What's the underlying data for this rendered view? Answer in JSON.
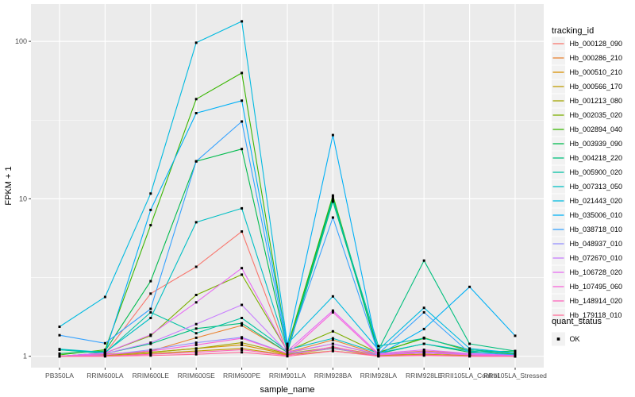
{
  "style_colors": {
    "figure_bg": "#FFFFFF",
    "panel_bg": "#EBEBEB",
    "grid": "#FFFFFF",
    "tick_label": "#4D4D4D",
    "tick_mark": "#333333",
    "axis_title": "#000000",
    "legend_key_bg": "#F2F2F2",
    "marker": "#000000"
  },
  "chart_data": {
    "type": "line",
    "title": "",
    "xlabel": "sample_name",
    "ylabel": "FPKM + 1",
    "y_scale": "log10",
    "y_ticks": [
      1,
      10,
      100
    ],
    "y_minor_ticks": [
      3.162,
      31.62
    ],
    "axis_ranges": {
      "y_top_value": 170,
      "y_bottom_value": 0.93
    },
    "grid": {
      "major": true,
      "minor": true
    },
    "legend_position": "right",
    "categories": [
      "PB350LA",
      "RRIM600LA",
      "RRIM600LE",
      "RRIM600SE",
      "RRIM600PE",
      "RRIM901LA",
      "RRIM928BA",
      "RRIM928LA",
      "RRIM928LE",
      "RRII105LA_Control",
      "RRII105LA_Stressed"
    ],
    "series": [
      {
        "name": "Hb_000128_090",
        "color": "#F8766D",
        "values": [
          1.0,
          1.04,
          2.5,
          3.7,
          6.2,
          1.05,
          1.2,
          1.02,
          1.06,
          1.02,
          1.0
        ]
      },
      {
        "name": "Hb_000286_210",
        "color": "#EA8331",
        "values": [
          1.0,
          1.03,
          1.08,
          1.31,
          1.57,
          1.06,
          1.27,
          1.03,
          1.08,
          1.04,
          1.0
        ]
      },
      {
        "name": "Hb_000510_210",
        "color": "#D89000",
        "values": [
          1.0,
          1.02,
          1.06,
          1.12,
          1.18,
          1.03,
          1.12,
          1.01,
          1.05,
          1.02,
          1.0
        ]
      },
      {
        "name": "Hb_000566_170",
        "color": "#C09B00",
        "values": [
          1.0,
          1.01,
          1.04,
          1.08,
          1.12,
          1.02,
          1.08,
          1.01,
          1.03,
          1.01,
          1.0
        ]
      },
      {
        "name": "Hb_001213_080",
        "color": "#A3A500",
        "values": [
          1.0,
          1.02,
          1.06,
          1.12,
          1.22,
          1.04,
          1.14,
          1.02,
          1.05,
          1.02,
          1.0
        ]
      },
      {
        "name": "Hb_002035_020",
        "color": "#7CAE00",
        "values": [
          1.0,
          1.05,
          1.35,
          2.45,
          3.3,
          1.08,
          1.44,
          1.05,
          1.31,
          1.08,
          1.03
        ]
      },
      {
        "name": "Hb_002894_040",
        "color": "#39B600",
        "values": [
          1.02,
          1.1,
          6.8,
          43.0,
          63.0,
          1.15,
          10.5,
          1.06,
          1.3,
          1.1,
          1.05
        ]
      },
      {
        "name": "Hb_003939_090",
        "color": "#00BB4E",
        "values": [
          1.04,
          1.08,
          3.0,
          17.3,
          20.7,
          1.1,
          10.2,
          1.04,
          1.2,
          1.06,
          1.08
        ]
      },
      {
        "name": "Hb_004218_220",
        "color": "#00BF7D",
        "values": [
          1.1,
          1.04,
          1.2,
          1.5,
          1.62,
          1.06,
          9.6,
          1.1,
          4.05,
          1.2,
          1.08
        ]
      },
      {
        "name": "Hb_005900_020",
        "color": "#00C1A3",
        "values": [
          1.1,
          1.05,
          1.9,
          1.4,
          1.75,
          1.08,
          9.9,
          1.16,
          1.3,
          1.1,
          1.04
        ]
      },
      {
        "name": "Hb_007313_050",
        "color": "#00BFC4",
        "values": [
          1.11,
          1.06,
          1.75,
          7.1,
          8.7,
          1.1,
          1.3,
          1.05,
          1.2,
          1.08,
          1.02
        ]
      },
      {
        "name": "Hb_021443_020",
        "color": "#00BAE0",
        "values": [
          1.54,
          2.38,
          10.8,
          98.0,
          134.0,
          1.2,
          2.4,
          1.1,
          2.03,
          1.12,
          1.05
        ]
      },
      {
        "name": "Hb_035006_010",
        "color": "#00B0F6",
        "values": [
          1.0,
          1.05,
          8.5,
          35.0,
          42.0,
          1.18,
          25.4,
          1.02,
          1.49,
          2.76,
          1.35
        ]
      },
      {
        "name": "Hb_038718_010",
        "color": "#35A2FF",
        "values": [
          1.36,
          1.21,
          2.0,
          17.3,
          31.0,
          1.12,
          7.6,
          1.04,
          1.9,
          1.05,
          1.02
        ]
      },
      {
        "name": "Hb_048937_010",
        "color": "#9590FF",
        "values": [
          1.0,
          1.02,
          1.1,
          1.22,
          1.32,
          1.04,
          1.12,
          1.02,
          1.06,
          1.02,
          1.0
        ]
      },
      {
        "name": "Hb_072670_010",
        "color": "#C77CFF",
        "values": [
          1.0,
          1.04,
          1.22,
          1.6,
          2.12,
          1.06,
          1.2,
          1.03,
          1.07,
          1.03,
          1.0
        ]
      },
      {
        "name": "Hb_106728_020",
        "color": "#E76BF3",
        "values": [
          1.0,
          1.05,
          1.37,
          2.2,
          3.63,
          1.08,
          1.95,
          1.04,
          1.1,
          1.04,
          1.01
        ]
      },
      {
        "name": "Hb_107495_060",
        "color": "#FA62DB",
        "values": [
          1.0,
          1.02,
          1.08,
          1.18,
          1.3,
          1.04,
          1.9,
          1.02,
          1.05,
          1.02,
          1.0
        ]
      },
      {
        "name": "Hb_148914_020",
        "color": "#FF62BC",
        "values": [
          1.0,
          1.0,
          1.03,
          1.06,
          1.1,
          1.01,
          1.15,
          1.0,
          1.02,
          1.0,
          1.0
        ]
      },
      {
        "name": "Hb_179118_010",
        "color": "#FF6A98",
        "values": [
          1.0,
          1.0,
          1.01,
          1.03,
          1.06,
          1.0,
          1.08,
          1.0,
          1.01,
          1.0,
          1.0
        ]
      }
    ],
    "marker": {
      "shape": "square",
      "color": "#000000"
    },
    "legend": {
      "tracking_title": "tracking_id",
      "quant_title": "quant_status",
      "quant_items": [
        {
          "label": "OK"
        }
      ]
    }
  }
}
